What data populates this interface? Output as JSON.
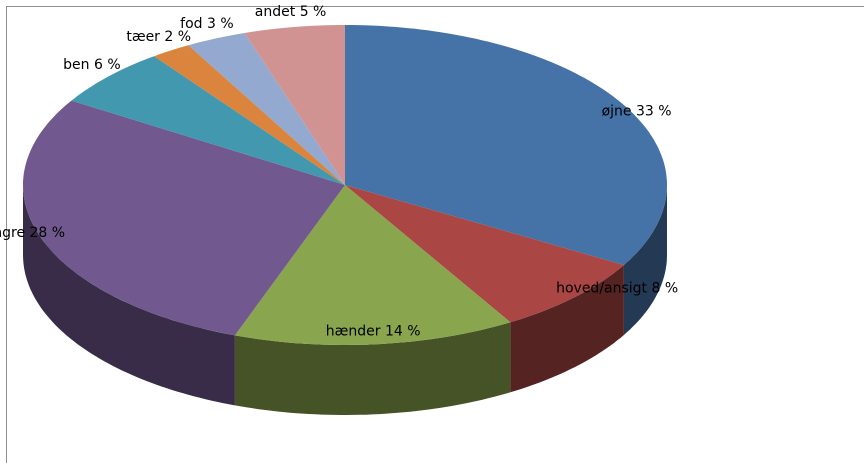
{
  "chart_data": {
    "type": "pie3d",
    "categories": [
      "øjne",
      "hoved/ansigt",
      "hænder",
      "fingre",
      "ben",
      "tæer",
      "fod",
      "andet"
    ],
    "values": [
      33,
      8,
      14,
      28,
      6,
      2,
      3,
      5
    ],
    "value_labels": [
      "33 %",
      "8 %",
      "14 %",
      "28 %",
      "6 %",
      "2 %",
      "3 %",
      "5 %"
    ],
    "colors": [
      "#4572a7",
      "#aa4643",
      "#89a54e",
      "#71588f",
      "#4198af",
      "#db843d",
      "#93a9cf",
      "#d19392"
    ]
  }
}
